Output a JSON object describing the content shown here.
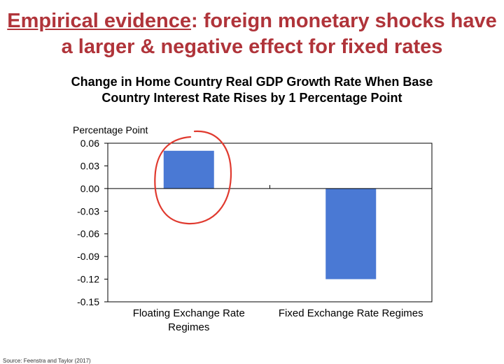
{
  "slide": {
    "title_emph": "Empirical evidence",
    "title_rest": ": foreign monetary shocks have a larger & negative effect for fixed rates",
    "source": "Source: Feenstra and Taylor (2017)"
  },
  "chart_data": {
    "type": "bar",
    "title": "Change in Home Country Real GDP Growth Rate When Base Country Interest Rate Rises by 1 Percentage Point",
    "ylabel": "Percentage Point",
    "xlabel": "",
    "categories": [
      [
        "Floating Exchange Rate",
        "Regimes"
      ],
      [
        "Fixed Exchange Rate Regimes"
      ]
    ],
    "values": [
      0.05,
      -0.12
    ],
    "ylim": [
      -0.15,
      0.06
    ],
    "yticks": [
      "0.06",
      "0.03",
      "0.00",
      "-0.03",
      "-0.06",
      "-0.09",
      "-0.12",
      "-0.15"
    ],
    "ytick_values": [
      0.06,
      0.03,
      0,
      -0.03,
      -0.06,
      -0.09,
      -0.12,
      -0.15
    ],
    "bar_color": "#4a79d4",
    "annotation_color": "#e03a2f",
    "annotation": "circle-around-floating-bar",
    "grid": false
  }
}
